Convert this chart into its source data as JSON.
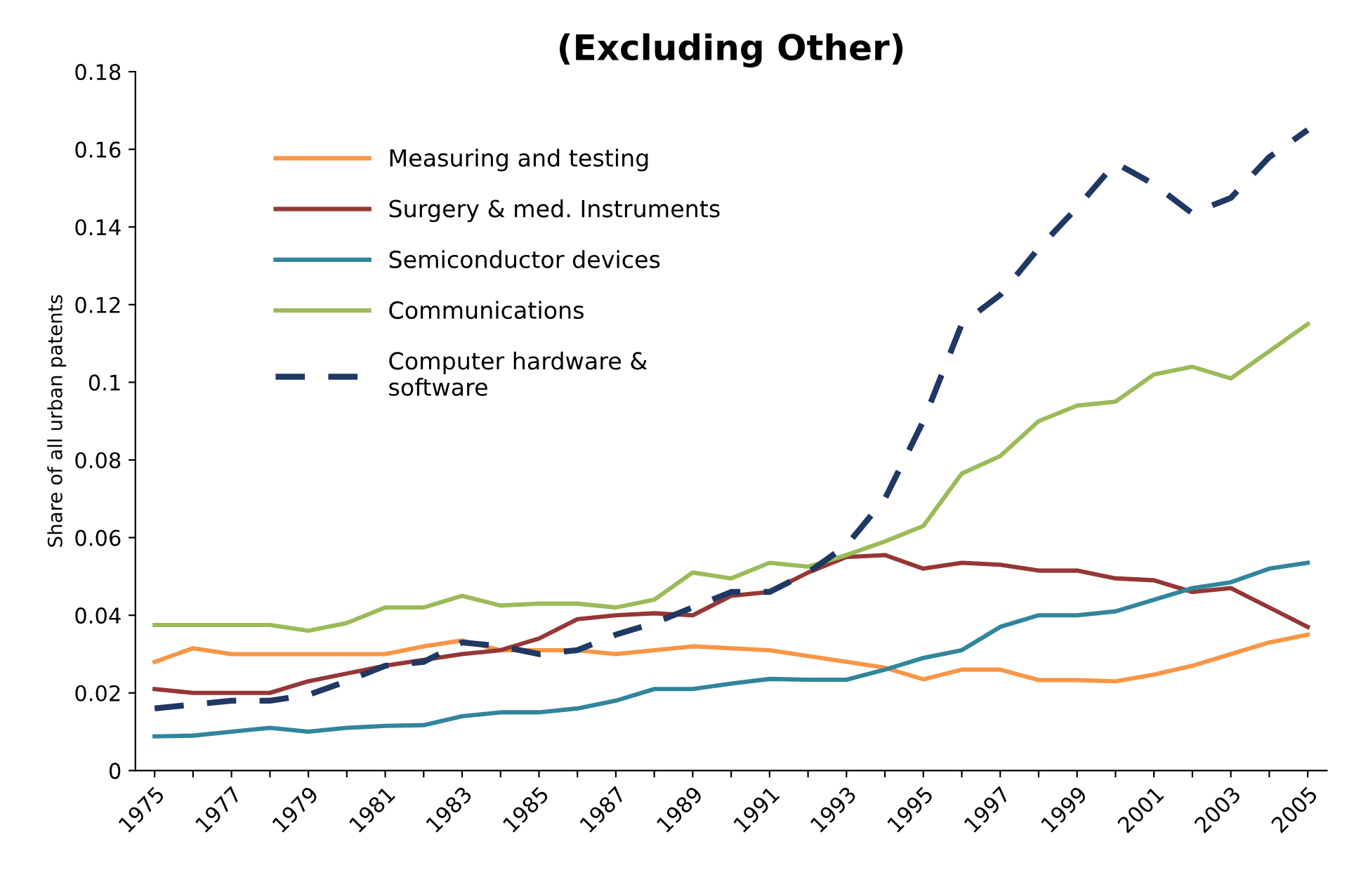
{
  "chart_data": {
    "type": "line",
    "title": "(Excluding Other)",
    "ylabel": "Share of all urban patents",
    "categories": [
      "1975",
      null,
      "1977",
      null,
      "1979",
      null,
      "1981",
      null,
      "1983",
      null,
      "1985",
      null,
      "1987",
      null,
      "1989",
      null,
      "1991",
      null,
      "1993",
      null,
      "1995",
      null,
      "1997",
      null,
      "1999",
      null,
      "2001",
      null,
      "2003",
      null,
      "2005"
    ],
    "ylim": [
      0,
      0.18
    ],
    "yticks": [
      0,
      0.02,
      0.04,
      0.06,
      0.08,
      0.1,
      0.12,
      0.14,
      0.16,
      0.18
    ],
    "grid": false,
    "legend": "top left",
    "series": [
      {
        "name": "Measuring and testing",
        "color": "#f79646",
        "line_style": "solid",
        "values": [
          0.028,
          0.0315,
          0.03,
          0.03,
          0.03,
          0.03,
          0.03,
          0.032,
          0.0335,
          0.031,
          0.031,
          0.031,
          0.03,
          0.031,
          0.032,
          0.0315,
          0.031,
          0.0295,
          0.028,
          0.0265,
          0.0235,
          0.026,
          0.026,
          0.0233,
          0.0233,
          0.023,
          0.0247,
          0.027,
          0.03,
          0.033,
          0.035
        ]
      },
      {
        "name": "Surgery & med. Instruments",
        "color": "#953735",
        "line_style": "solid",
        "values": [
          0.021,
          0.02,
          0.02,
          0.02,
          0.023,
          0.025,
          0.027,
          0.0285,
          0.03,
          0.031,
          0.034,
          0.039,
          0.04,
          0.0405,
          0.04,
          0.045,
          0.046,
          0.051,
          0.055,
          0.0555,
          0.052,
          0.0535,
          0.053,
          0.0515,
          0.0515,
          0.0495,
          0.049,
          0.046,
          0.047,
          0.042,
          0.037
        ]
      },
      {
        "name": "Semiconductor devices",
        "color": "#31859c",
        "line_style": "solid",
        "values": [
          0.0088,
          0.009,
          0.01,
          0.011,
          0.01,
          0.011,
          0.0115,
          0.0117,
          0.014,
          0.015,
          0.015,
          0.016,
          0.018,
          0.021,
          0.021,
          0.0224,
          0.0236,
          0.0234,
          0.0234,
          0.026,
          0.029,
          0.031,
          0.037,
          0.04,
          0.04,
          0.041,
          0.044,
          0.047,
          0.0485,
          0.052,
          0.0535
        ]
      },
      {
        "name": "Communications",
        "color": "#9bbb59",
        "line_style": "solid",
        "values": [
          0.0375,
          0.0375,
          0.0375,
          0.0375,
          0.036,
          0.038,
          0.042,
          0.042,
          0.045,
          0.0425,
          0.043,
          0.043,
          0.042,
          0.044,
          0.051,
          0.0495,
          0.0535,
          0.0525,
          0.0555,
          0.059,
          0.063,
          0.0765,
          0.081,
          0.09,
          0.094,
          0.095,
          0.102,
          0.104,
          0.101,
          0.108,
          0.115
        ]
      },
      {
        "name": "Computer hardware &\nsoftware",
        "color": "#1f3864",
        "line_style": "dashed",
        "values": [
          0.016,
          0.017,
          0.018,
          0.018,
          0.0195,
          0.023,
          0.027,
          0.028,
          0.033,
          0.032,
          0.03,
          0.031,
          0.035,
          0.038,
          0.042,
          0.046,
          0.046,
          0.051,
          0.058,
          0.07,
          0.09,
          0.115,
          0.1225,
          0.1345,
          0.145,
          0.1565,
          0.151,
          0.1435,
          0.1475,
          0.158,
          0.165
        ]
      }
    ]
  }
}
